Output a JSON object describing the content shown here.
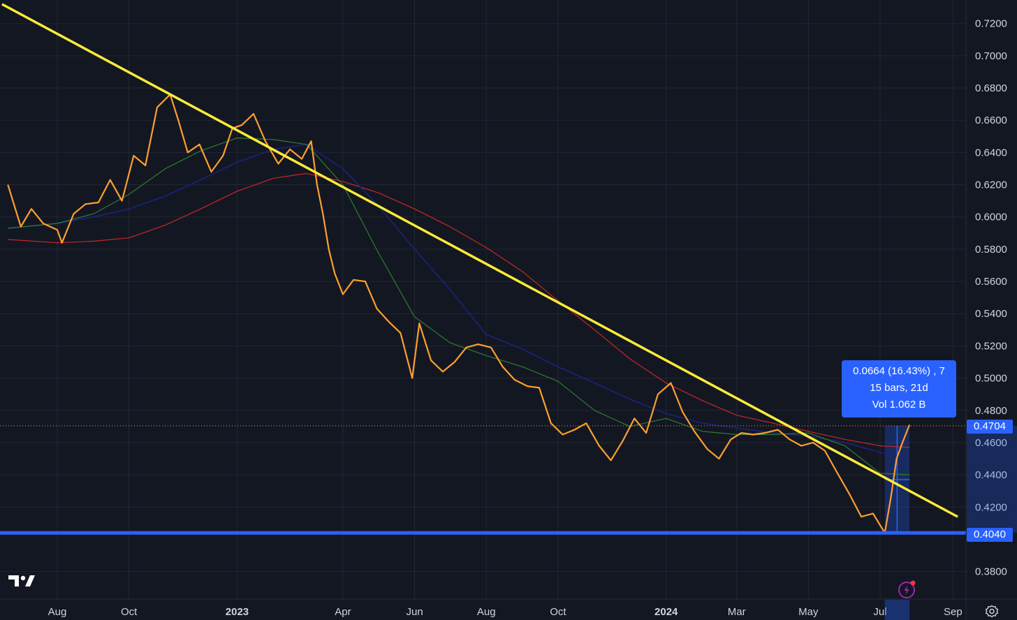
{
  "chart_data": {
    "type": "line",
    "x_ticks": [
      "Aug",
      "Oct",
      "2023",
      "Apr",
      "Jun",
      "Aug",
      "Oct",
      "2024",
      "Mar",
      "May",
      "Jul",
      "Sep"
    ],
    "x_ticks_bold": [
      "2023",
      "2024"
    ],
    "y_ticks": [
      "0.7200",
      "0.7000",
      "0.6800",
      "0.6600",
      "0.6400",
      "0.6200",
      "0.6000",
      "0.5800",
      "0.5600",
      "0.5400",
      "0.5200",
      "0.5000",
      "0.4800",
      "0.4600",
      "0.4400",
      "0.4200",
      "0.3800"
    ],
    "ylim": [
      0.369,
      0.732
    ],
    "grid": true,
    "series": [
      {
        "role": "price",
        "color": "#ff9f2e",
        "x": [
          "2022-06-20",
          "2022-07-01",
          "2022-07-10",
          "2022-07-20",
          "2022-08-01",
          "2022-08-05",
          "2022-08-15",
          "2022-08-25",
          "2022-09-05",
          "2022-09-15",
          "2022-09-25",
          "2022-10-05",
          "2022-10-15",
          "2022-10-25",
          "2022-11-05",
          "2022-11-12",
          "2022-11-20",
          "2022-11-30",
          "2022-12-10",
          "2022-12-20",
          "2022-12-28",
          "2023-01-05",
          "2023-01-15",
          "2023-01-25",
          "2023-02-05",
          "2023-02-15",
          "2023-02-25",
          "2023-03-05",
          "2023-03-10",
          "2023-03-15",
          "2023-03-20",
          "2023-03-25",
          "2023-04-01",
          "2023-04-10",
          "2023-04-20",
          "2023-04-30",
          "2023-05-10",
          "2023-05-20",
          "2023-05-30",
          "2023-06-05",
          "2023-06-15",
          "2023-06-25",
          "2023-07-05",
          "2023-07-15",
          "2023-07-25",
          "2023-08-05",
          "2023-08-15",
          "2023-08-25",
          "2023-09-05",
          "2023-09-15",
          "2023-09-25",
          "2023-10-05",
          "2023-10-15",
          "2023-10-25",
          "2023-11-05",
          "2023-11-15",
          "2023-11-25",
          "2023-12-05",
          "2023-12-15",
          "2023-12-25",
          "2024-01-05",
          "2024-01-15",
          "2024-01-25",
          "2024-02-05",
          "2024-02-15",
          "2024-02-25",
          "2024-03-05",
          "2024-03-15",
          "2024-03-25",
          "2024-04-05",
          "2024-04-15",
          "2024-04-25",
          "2024-05-05",
          "2024-05-15",
          "2024-05-25",
          "2024-06-05",
          "2024-06-15",
          "2024-06-25",
          "2024-07-05",
          "2024-07-10",
          "2024-07-15",
          "2024-07-20",
          "2024-07-26"
        ],
        "y": [
          0.62,
          0.594,
          0.605,
          0.596,
          0.592,
          0.584,
          0.602,
          0.608,
          0.609,
          0.623,
          0.61,
          0.638,
          0.632,
          0.668,
          0.676,
          0.66,
          0.64,
          0.645,
          0.628,
          0.638,
          0.655,
          0.657,
          0.664,
          0.647,
          0.633,
          0.642,
          0.636,
          0.647,
          0.62,
          0.602,
          0.58,
          0.565,
          0.552,
          0.561,
          0.56,
          0.543,
          0.535,
          0.528,
          0.5,
          0.534,
          0.511,
          0.504,
          0.51,
          0.519,
          0.521,
          0.519,
          0.507,
          0.499,
          0.495,
          0.494,
          0.472,
          0.465,
          0.468,
          0.472,
          0.458,
          0.449,
          0.461,
          0.475,
          0.466,
          0.49,
          0.497,
          0.479,
          0.467,
          0.456,
          0.45,
          0.462,
          0.466,
          0.465,
          0.466,
          0.468,
          0.462,
          0.458,
          0.46,
          0.455,
          0.442,
          0.428,
          0.414,
          0.416,
          0.404,
          0.425,
          0.45,
          0.46,
          0.471
        ]
      },
      {
        "role": "ma-short",
        "color": "#2e7d32",
        "x": [
          "2022-06-20",
          "2022-08-01",
          "2022-09-01",
          "2022-10-01",
          "2022-11-01",
          "2022-12-01",
          "2023-01-01",
          "2023-02-01",
          "2023-03-01",
          "2023-04-01",
          "2023-05-01",
          "2023-06-01",
          "2023-07-01",
          "2023-08-01",
          "2023-09-01",
          "2023-10-01",
          "2023-11-01",
          "2023-12-01",
          "2024-01-01",
          "2024-02-01",
          "2024-03-01",
          "2024-04-01",
          "2024-05-01",
          "2024-06-01",
          "2024-07-01",
          "2024-07-26"
        ],
        "y": [
          0.593,
          0.596,
          0.602,
          0.614,
          0.63,
          0.641,
          0.649,
          0.648,
          0.645,
          0.62,
          0.578,
          0.538,
          0.522,
          0.514,
          0.507,
          0.498,
          0.48,
          0.47,
          0.475,
          0.467,
          0.465,
          0.465,
          0.466,
          0.458,
          0.441,
          0.44
        ]
      },
      {
        "role": "ma-medium",
        "color": "#1a237e",
        "x": [
          "2022-06-20",
          "2022-08-01",
          "2022-09-01",
          "2022-10-01",
          "2022-11-01",
          "2022-12-01",
          "2023-01-01",
          "2023-02-01",
          "2023-03-01",
          "2023-04-01",
          "2023-05-01",
          "2023-06-01",
          "2023-07-01",
          "2023-08-01",
          "2023-09-01",
          "2023-10-01",
          "2023-11-01",
          "2023-12-01",
          "2024-01-01",
          "2024-02-01",
          "2024-03-01",
          "2024-04-01",
          "2024-05-01",
          "2024-06-01",
          "2024-07-01",
          "2024-07-26"
        ],
        "y": [
          0.593,
          0.596,
          0.6,
          0.605,
          0.613,
          0.623,
          0.634,
          0.642,
          0.645,
          0.63,
          0.607,
          0.58,
          0.555,
          0.527,
          0.518,
          0.507,
          0.497,
          0.487,
          0.478,
          0.472,
          0.469,
          0.466,
          0.464,
          0.46,
          0.454,
          0.45
        ]
      },
      {
        "role": "ma-long",
        "color": "#c62828",
        "x": [
          "2022-06-20",
          "2022-08-01",
          "2022-09-01",
          "2022-10-01",
          "2022-11-01",
          "2022-12-01",
          "2023-01-01",
          "2023-02-01",
          "2023-03-01",
          "2023-04-01",
          "2023-05-01",
          "2023-06-01",
          "2023-07-01",
          "2023-08-01",
          "2023-09-01",
          "2023-10-01",
          "2023-11-01",
          "2023-12-01",
          "2024-01-01",
          "2024-02-01",
          "2024-03-01",
          "2024-04-01",
          "2024-05-01",
          "2024-06-01",
          "2024-07-01",
          "2024-07-26"
        ],
        "y": [
          0.586,
          0.584,
          0.585,
          0.587,
          0.595,
          0.605,
          0.616,
          0.624,
          0.627,
          0.622,
          0.615,
          0.605,
          0.594,
          0.581,
          0.566,
          0.548,
          0.53,
          0.512,
          0.497,
          0.486,
          0.477,
          0.472,
          0.467,
          0.462,
          0.458,
          0.457
        ]
      }
    ],
    "trendline": {
      "color": "#ffeb3b",
      "x": [
        "2022-06-15",
        "2024-09-05"
      ],
      "y": [
        0.732,
        0.414
      ]
    },
    "support_level": {
      "value": 0.404,
      "label": "0.4040",
      "color": "#2962ff"
    },
    "current_price": {
      "value": 0.4704,
      "label": "0.4704",
      "color": "#ff9f2e"
    },
    "measure": {
      "x_start": "2024-07-05",
      "x_end": "2024-07-26",
      "y_low": 0.404,
      "y_high": 0.4704,
      "label_line1": "0.0664 (16.43%) , 7",
      "label_line2": "15 bars, 21d",
      "label_line3": "Vol 1.062 B",
      "color": "#2962ff"
    }
  },
  "colors": {
    "background": "#131722",
    "grid": "#232734",
    "text": "#d1d4dc"
  },
  "icons": [
    "tradingview-logo-icon",
    "flash-icon",
    "settings-icon"
  ]
}
